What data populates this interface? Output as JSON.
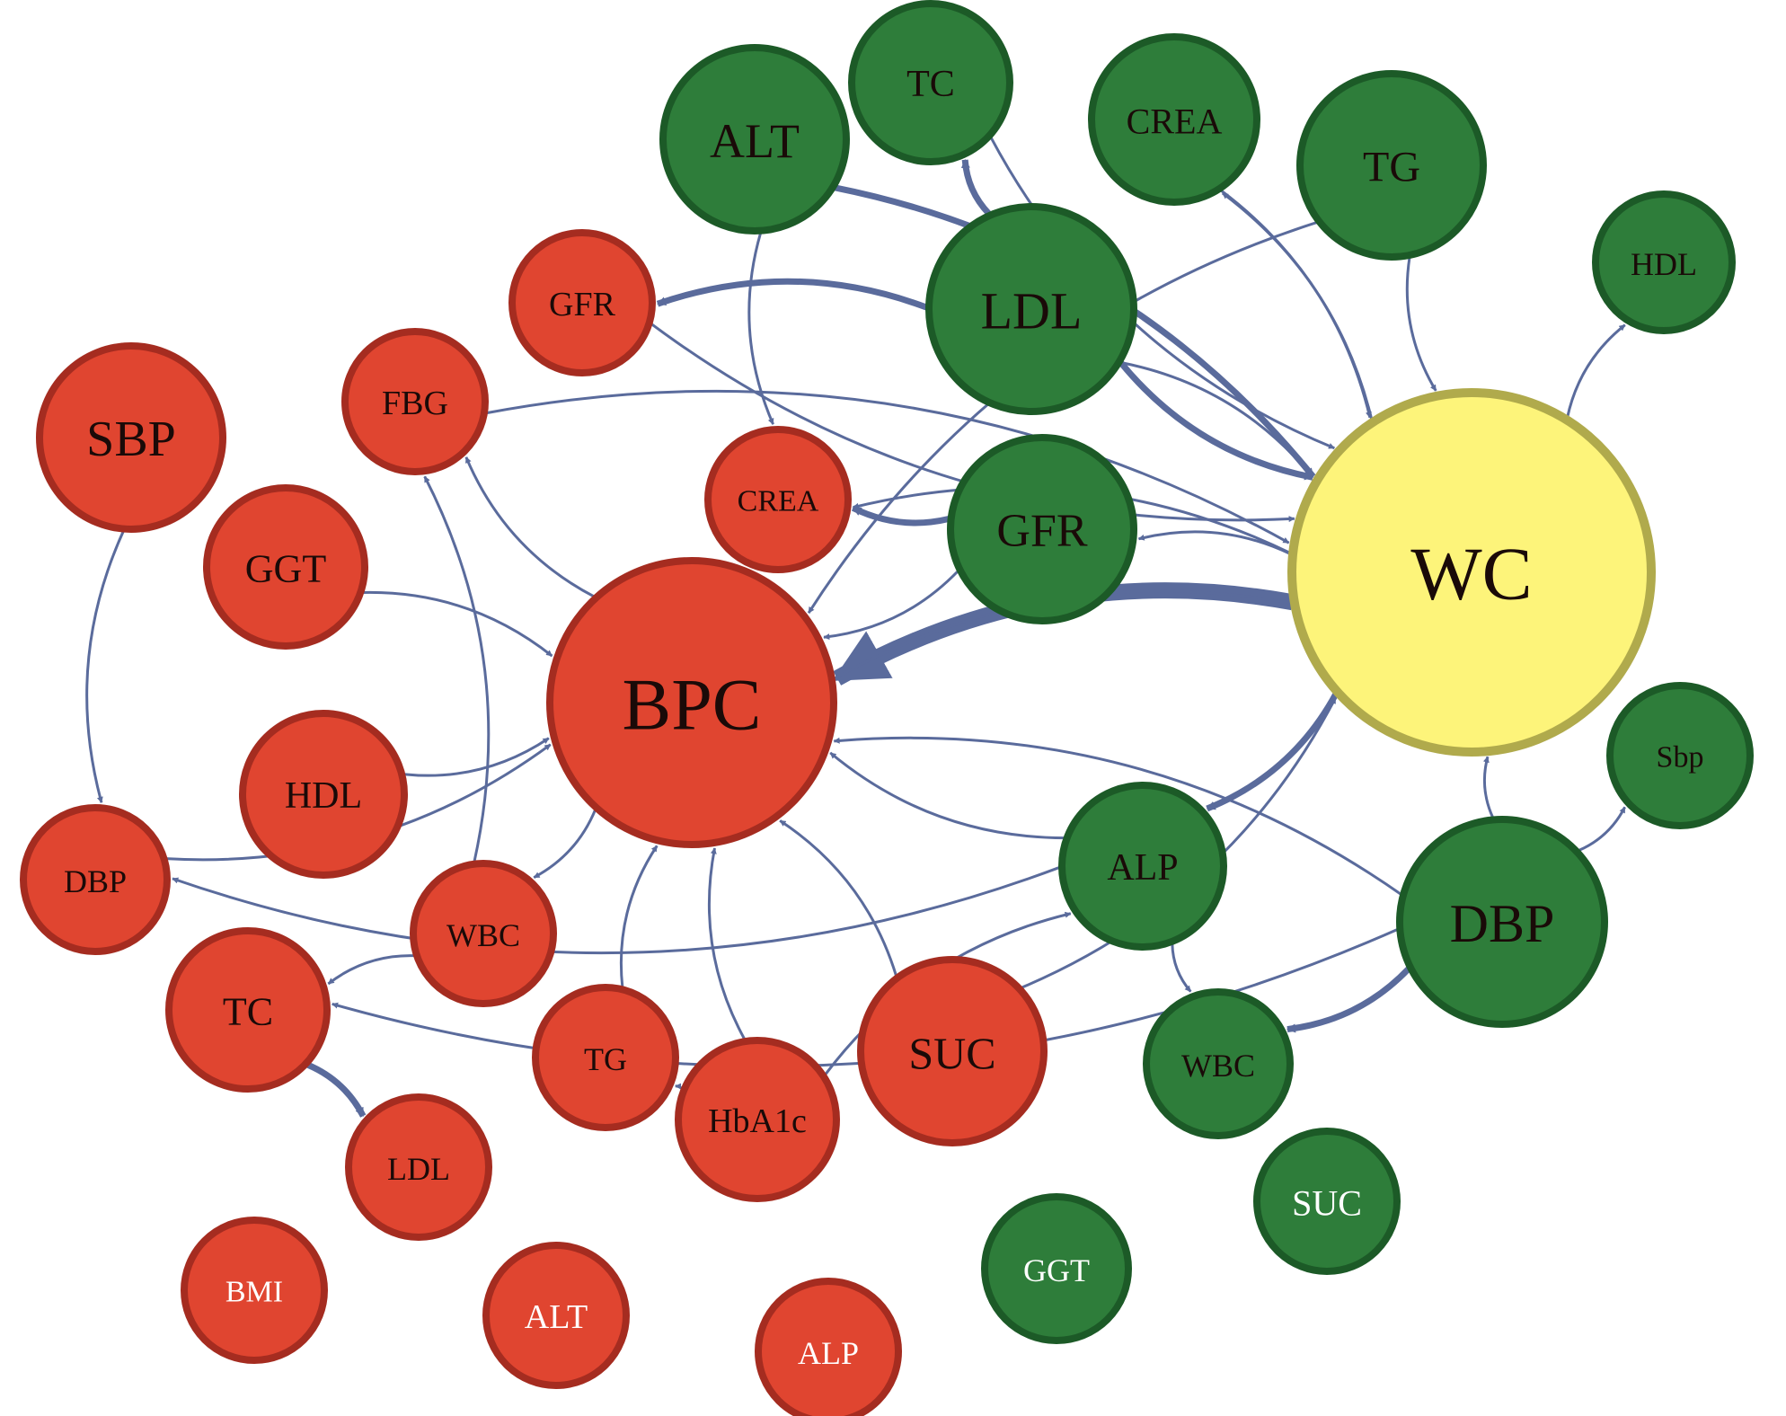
{
  "colors": {
    "red_fill": "#e04530",
    "red_stroke": "#a52c20",
    "green_fill": "#2e7d3a",
    "green_stroke": "#1c5a27",
    "yellow_fill": "#fdf47a",
    "yellow_stroke": "#b0aa4c",
    "edge": "#5a6b9c",
    "text_dark": "#1a0a08",
    "text_light": "#ffffff"
  },
  "nodes": [
    {
      "id": "r-bpc",
      "label": "BPC",
      "group": "red"
    },
    {
      "id": "r-sbp",
      "label": "SBP",
      "group": "red"
    },
    {
      "id": "r-gfr",
      "label": "GFR",
      "group": "red"
    },
    {
      "id": "r-fbg",
      "label": "FBG",
      "group": "red"
    },
    {
      "id": "r-crea",
      "label": "CREA",
      "group": "red"
    },
    {
      "id": "r-ggt",
      "label": "GGT",
      "group": "red"
    },
    {
      "id": "r-hdl",
      "label": "HDL",
      "group": "red"
    },
    {
      "id": "r-dbp",
      "label": "DBP",
      "group": "red"
    },
    {
      "id": "r-wbc",
      "label": "WBC",
      "group": "red"
    },
    {
      "id": "r-tc",
      "label": "TC",
      "group": "red"
    },
    {
      "id": "r-tg",
      "label": "TG",
      "group": "red"
    },
    {
      "id": "r-hba1c",
      "label": "HbA1c",
      "group": "red"
    },
    {
      "id": "r-suc",
      "label": "SUC",
      "group": "red"
    },
    {
      "id": "r-ldl",
      "label": "LDL",
      "group": "red"
    },
    {
      "id": "r-bmi",
      "label": "BMI",
      "group": "red",
      "light_text": true
    },
    {
      "id": "r-alt",
      "label": "ALT",
      "group": "red",
      "light_text": true
    },
    {
      "id": "r-alp",
      "label": "ALP",
      "group": "red",
      "light_text": true
    },
    {
      "id": "g-alt",
      "label": "ALT",
      "group": "green"
    },
    {
      "id": "g-tc",
      "label": "TC",
      "group": "green"
    },
    {
      "id": "g-crea",
      "label": "CREA",
      "group": "green"
    },
    {
      "id": "g-tg",
      "label": "TG",
      "group": "green"
    },
    {
      "id": "g-hdl",
      "label": "HDL",
      "group": "green"
    },
    {
      "id": "g-ldl",
      "label": "LDL",
      "group": "green"
    },
    {
      "id": "g-gfr",
      "label": "GFR",
      "group": "green"
    },
    {
      "id": "g-alp",
      "label": "ALP",
      "group": "green"
    },
    {
      "id": "g-sbp",
      "label": "Sbp",
      "group": "green"
    },
    {
      "id": "g-dbp",
      "label": "DBP",
      "group": "green"
    },
    {
      "id": "g-wbc",
      "label": "WBC",
      "group": "green"
    },
    {
      "id": "g-suc",
      "label": "SUC",
      "group": "green",
      "light_text": true
    },
    {
      "id": "g-ggt",
      "label": "GGT",
      "group": "green",
      "light_text": true
    },
    {
      "id": "wc",
      "label": "WC",
      "group": "yellow"
    }
  ],
  "edges": [
    {
      "from": "wc",
      "to": "r-bpc",
      "weight": "heavy"
    },
    {
      "from": "g-gfr",
      "to": "r-crea",
      "weight": "medium"
    },
    {
      "from": "g-ldl",
      "to": "r-gfr",
      "weight": "medium"
    },
    {
      "from": "g-ldl",
      "to": "g-tc",
      "weight": "medium"
    },
    {
      "from": "g-ldl",
      "to": "wc",
      "weight": "medium"
    },
    {
      "from": "g-alt",
      "to": "wc",
      "weight": "medium"
    },
    {
      "from": "g-tg",
      "to": "wc",
      "weight": "light"
    },
    {
      "from": "wc",
      "to": "g-hdl",
      "weight": "light"
    },
    {
      "from": "g-tc",
      "to": "wc",
      "weight": "light"
    },
    {
      "from": "g-crea",
      "to": "wc",
      "weight": "light"
    },
    {
      "from": "wc",
      "to": "g-crea",
      "weight": "light"
    },
    {
      "from": "g-ldl",
      "to": "wc",
      "weight": "light"
    },
    {
      "from": "r-sbp",
      "to": "r-dbp",
      "weight": "light"
    },
    {
      "from": "r-ggt",
      "to": "r-bpc",
      "weight": "light"
    },
    {
      "from": "r-hdl",
      "to": "r-bpc",
      "weight": "light"
    },
    {
      "from": "r-bpc",
      "to": "r-fbg",
      "weight": "light"
    },
    {
      "from": "r-wbc",
      "to": "r-fbg",
      "weight": "light"
    },
    {
      "from": "r-bpc",
      "to": "r-wbc",
      "weight": "light"
    },
    {
      "from": "r-wbc",
      "to": "r-tc",
      "weight": "light"
    },
    {
      "from": "r-tc",
      "to": "r-ldl",
      "weight": "medium"
    },
    {
      "from": "r-hba1c",
      "to": "r-tg",
      "weight": "light"
    },
    {
      "from": "r-hba1c",
      "to": "r-bpc",
      "weight": "light"
    },
    {
      "from": "r-suc",
      "to": "r-bpc",
      "weight": "light"
    },
    {
      "from": "wc",
      "to": "g-alp",
      "weight": "medium"
    },
    {
      "from": "wc",
      "to": "g-gfr",
      "weight": "light"
    },
    {
      "from": "g-gfr",
      "to": "r-bpc",
      "weight": "light"
    },
    {
      "from": "g-tg",
      "to": "r-bpc",
      "weight": "light"
    },
    {
      "from": "g-alp",
      "to": "r-dbp",
      "weight": "light"
    },
    {
      "from": "g-alp",
      "to": "g-wbc",
      "weight": "light"
    },
    {
      "from": "g-dbp",
      "to": "g-wbc",
      "weight": "medium"
    },
    {
      "from": "g-dbp",
      "to": "g-sbp",
      "weight": "light"
    },
    {
      "from": "g-dbp",
      "to": "wc",
      "weight": "light"
    },
    {
      "from": "g-dbp",
      "to": "r-bpc",
      "weight": "light"
    },
    {
      "from": "g-dbp",
      "to": "r-tc",
      "weight": "light"
    },
    {
      "from": "r-suc",
      "to": "wc",
      "weight": "light"
    },
    {
      "from": "g-alp",
      "to": "r-bpc",
      "weight": "light"
    },
    {
      "from": "r-gfr",
      "to": "wc",
      "weight": "light"
    },
    {
      "from": "r-fbg",
      "to": "wc",
      "weight": "light"
    },
    {
      "from": "wc",
      "to": "r-crea",
      "weight": "light"
    },
    {
      "from": "r-bpc",
      "to": "wc",
      "weight": "light"
    },
    {
      "from": "g-alt",
      "to": "r-crea",
      "weight": "light"
    },
    {
      "from": "r-hba1c",
      "to": "g-alp",
      "weight": "light"
    },
    {
      "from": "r-dbp",
      "to": "r-bpc",
      "weight": "light"
    },
    {
      "from": "r-tg",
      "to": "r-bpc",
      "weight": "light"
    }
  ]
}
